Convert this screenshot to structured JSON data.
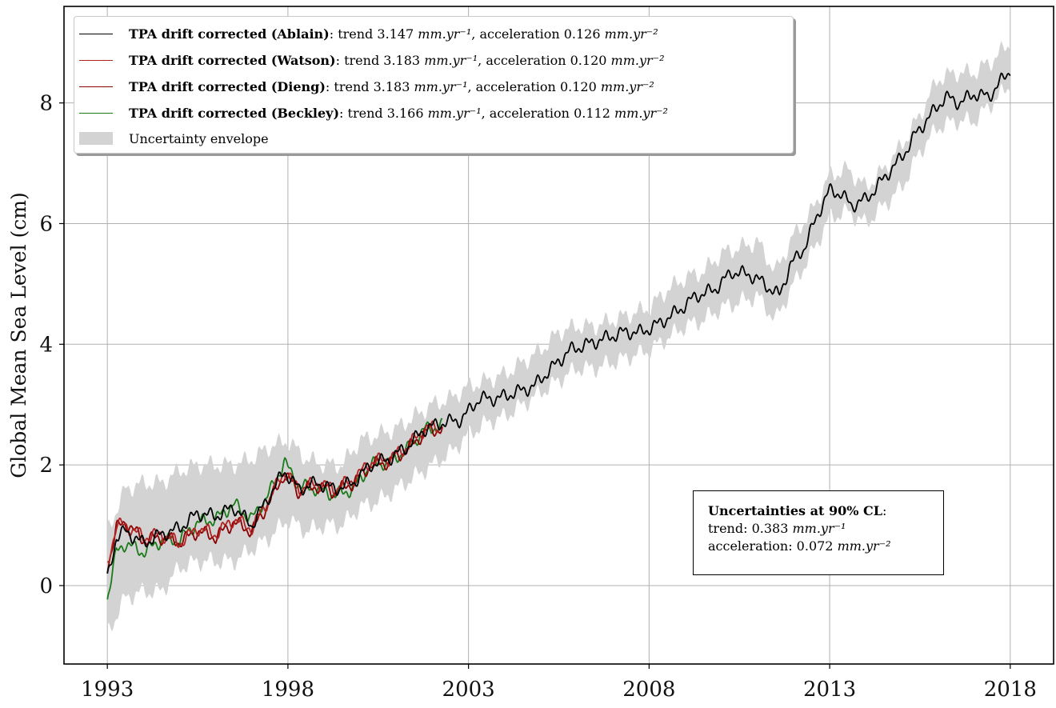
{
  "chart_data": {
    "type": "line",
    "xlabel": "",
    "ylabel": "Global Mean Sea Level (cm)",
    "xlim": [
      1991.8,
      2019.2
    ],
    "ylim": [
      -1.3,
      9.6
    ],
    "xticks": [
      1993,
      1998,
      2003,
      2008,
      2013,
      2018
    ],
    "yticks": [
      0,
      2,
      4,
      6,
      8
    ],
    "grid": true,
    "legend_position": "top-left",
    "envelope": {
      "name": "Uncertainty envelope",
      "color": "#d3d3d3",
      "x": [
        1993.0,
        1993.5,
        1994.0,
        1994.5,
        1995.0,
        1995.5,
        1996.0,
        1996.5,
        1997.0,
        1997.5,
        1998.0,
        1998.5,
        1999.0,
        1999.5,
        2000.0,
        2000.5,
        2001.0,
        2001.5,
        2002.0,
        2002.5,
        2003.0,
        2003.5,
        2004.0,
        2004.5,
        2005.0,
        2005.5,
        2006.0,
        2006.5,
        2007.0,
        2007.5,
        2008.0,
        2008.5,
        2009.0,
        2009.5,
        2010.0,
        2010.5,
        2011.0,
        2011.5,
        2012.0,
        2012.5,
        2013.0,
        2013.5,
        2014.0,
        2014.5,
        2015.0,
        2015.5,
        2016.0,
        2016.5,
        2017.0,
        2017.5,
        2018.0
      ],
      "upper": [
        0.9,
        1.6,
        1.7,
        1.7,
        1.9,
        2.0,
        2.0,
        2.0,
        2.1,
        2.3,
        2.4,
        2.1,
        2.0,
        2.0,
        2.4,
        2.5,
        2.6,
        2.8,
        3.0,
        3.1,
        3.3,
        3.4,
        3.5,
        3.7,
        3.9,
        4.2,
        4.3,
        4.3,
        4.4,
        4.5,
        4.6,
        4.9,
        5.1,
        5.2,
        5.5,
        5.6,
        5.7,
        5.2,
        5.8,
        6.2,
        6.8,
        6.9,
        6.6,
        6.9,
        7.3,
        7.8,
        8.4,
        8.5,
        8.5,
        8.7,
        9.0
      ],
      "lower": [
        -0.8,
        -0.2,
        -0.1,
        -0.1,
        0.3,
        0.4,
        0.4,
        0.4,
        0.6,
        0.8,
        1.1,
        0.9,
        1.0,
        1.0,
        1.3,
        1.4,
        1.6,
        1.8,
        2.0,
        2.2,
        2.5,
        2.7,
        2.8,
        3.0,
        3.2,
        3.4,
        3.6,
        3.6,
        3.7,
        3.8,
        3.9,
        4.1,
        4.3,
        4.4,
        4.6,
        4.7,
        4.8,
        4.4,
        5.0,
        5.5,
        6.1,
        6.2,
        6.0,
        6.3,
        6.6,
        7.2,
        7.6,
        7.7,
        7.7,
        8.0,
        8.3
      ]
    },
    "series": [
      {
        "name": "TPA drift corrected (Ablain)",
        "trend": "3.147",
        "acceleration": "0.126",
        "color": "#000000",
        "x": [
          1993.0,
          1993.25,
          1993.5,
          1994.0,
          1994.5,
          1995.0,
          1995.5,
          1996.0,
          1996.5,
          1997.0,
          1997.5,
          1997.9,
          1998.3,
          1998.8,
          1999.3,
          1999.8,
          2000.3,
          2000.8,
          2001.3,
          2001.8,
          2002.3,
          2002.8,
          2003.3,
          2003.8,
          2004.3,
          2004.8,
          2005.3,
          2005.8,
          2006.3,
          2006.8,
          2007.3,
          2007.8,
          2008.3,
          2008.8,
          2009.3,
          2009.8,
          2010.3,
          2010.8,
          2011.2,
          2011.6,
          2011.9,
          2012.3,
          2012.7,
          2013.0,
          2013.3,
          2013.6,
          2014.0,
          2014.3,
          2014.7,
          2015.0,
          2015.4,
          2015.8,
          2016.2,
          2016.6,
          2017.0,
          2017.4,
          2017.8,
          2018.0
        ],
        "values": [
          0.1,
          0.8,
          0.9,
          0.7,
          0.85,
          0.95,
          1.2,
          1.15,
          1.3,
          1.0,
          1.5,
          1.9,
          1.6,
          1.7,
          1.6,
          1.7,
          2.0,
          2.1,
          2.3,
          2.6,
          2.7,
          2.75,
          3.1,
          3.1,
          3.2,
          3.3,
          3.6,
          3.9,
          4.0,
          4.1,
          4.2,
          4.2,
          4.35,
          4.55,
          4.8,
          4.9,
          5.2,
          5.15,
          5.0,
          4.8,
          5.3,
          5.6,
          6.2,
          6.55,
          6.5,
          6.3,
          6.4,
          6.6,
          6.9,
          7.1,
          7.5,
          7.8,
          8.1,
          8.0,
          8.15,
          8.1,
          8.4,
          8.55
        ]
      },
      {
        "name": "TPA drift corrected (Watson)",
        "trend": "3.183",
        "acceleration": "0.120",
        "color": "#b22222",
        "x": [
          1993.0,
          1993.25,
          1993.5,
          1994.0,
          1994.5,
          1995.0,
          1995.5,
          1996.0,
          1996.5,
          1997.0,
          1997.5,
          1997.9,
          1998.3,
          1998.8,
          1999.3,
          1999.8,
          2000.3,
          2000.8,
          2001.3,
          2001.8,
          2002.3
        ],
        "values": [
          0.35,
          1.0,
          1.0,
          0.8,
          0.85,
          0.7,
          0.95,
          0.85,
          1.1,
          0.95,
          1.45,
          1.9,
          1.6,
          1.7,
          1.6,
          1.75,
          2.05,
          2.1,
          2.3,
          2.6,
          2.65
        ]
      },
      {
        "name": "TPA drift corrected (Dieng)",
        "trend": "3.183",
        "acceleration": "0.120",
        "color": "#8b0000",
        "x": [
          1993.0,
          1993.25,
          1993.5,
          1994.0,
          1994.5,
          1995.0,
          1995.5,
          1996.0,
          1996.5,
          1997.0,
          1997.5,
          1997.9,
          1998.3,
          1998.8,
          1999.3,
          1999.8,
          2000.3,
          2000.8,
          2001.3,
          2001.8,
          2002.3
        ],
        "values": [
          0.3,
          0.95,
          1.05,
          0.75,
          0.8,
          0.72,
          0.9,
          0.8,
          1.05,
          0.9,
          1.4,
          1.85,
          1.55,
          1.65,
          1.55,
          1.7,
          2.0,
          2.05,
          2.25,
          2.55,
          2.6
        ]
      },
      {
        "name": "TPA drift corrected (Beckley)",
        "trend": "3.166",
        "acceleration": "0.112",
        "color": "#1a7a1a",
        "x": [
          1993.0,
          1993.25,
          1993.5,
          1994.0,
          1994.5,
          1995.0,
          1995.5,
          1996.0,
          1996.5,
          1997.0,
          1997.5,
          1997.9,
          1998.3,
          1998.8,
          1999.3,
          1999.8,
          2000.3,
          2000.8,
          2001.3,
          2001.8,
          2002.3
        ],
        "values": [
          -0.2,
          0.55,
          0.7,
          0.55,
          0.75,
          0.75,
          1.05,
          1.1,
          1.35,
          1.1,
          1.55,
          2.05,
          1.65,
          1.6,
          1.5,
          1.6,
          2.0,
          2.05,
          2.25,
          2.6,
          2.65
        ]
      }
    ],
    "legend": {
      "trend_label": "trend",
      "acceleration_label": "acceleration",
      "trend_unit": "mm.yr⁻¹",
      "acceleration_unit": "mm.yr⁻²",
      "envelope_label": "Uncertainty envelope"
    },
    "annotation": {
      "title": "Uncertainties at 90% CL",
      "trend_label": "trend:",
      "trend_value": "0.383",
      "trend_unit": "mm.yr⁻¹",
      "acceleration_label": "acceleration:",
      "acceleration_value": "0.072",
      "acceleration_unit": "mm.yr⁻²"
    }
  }
}
